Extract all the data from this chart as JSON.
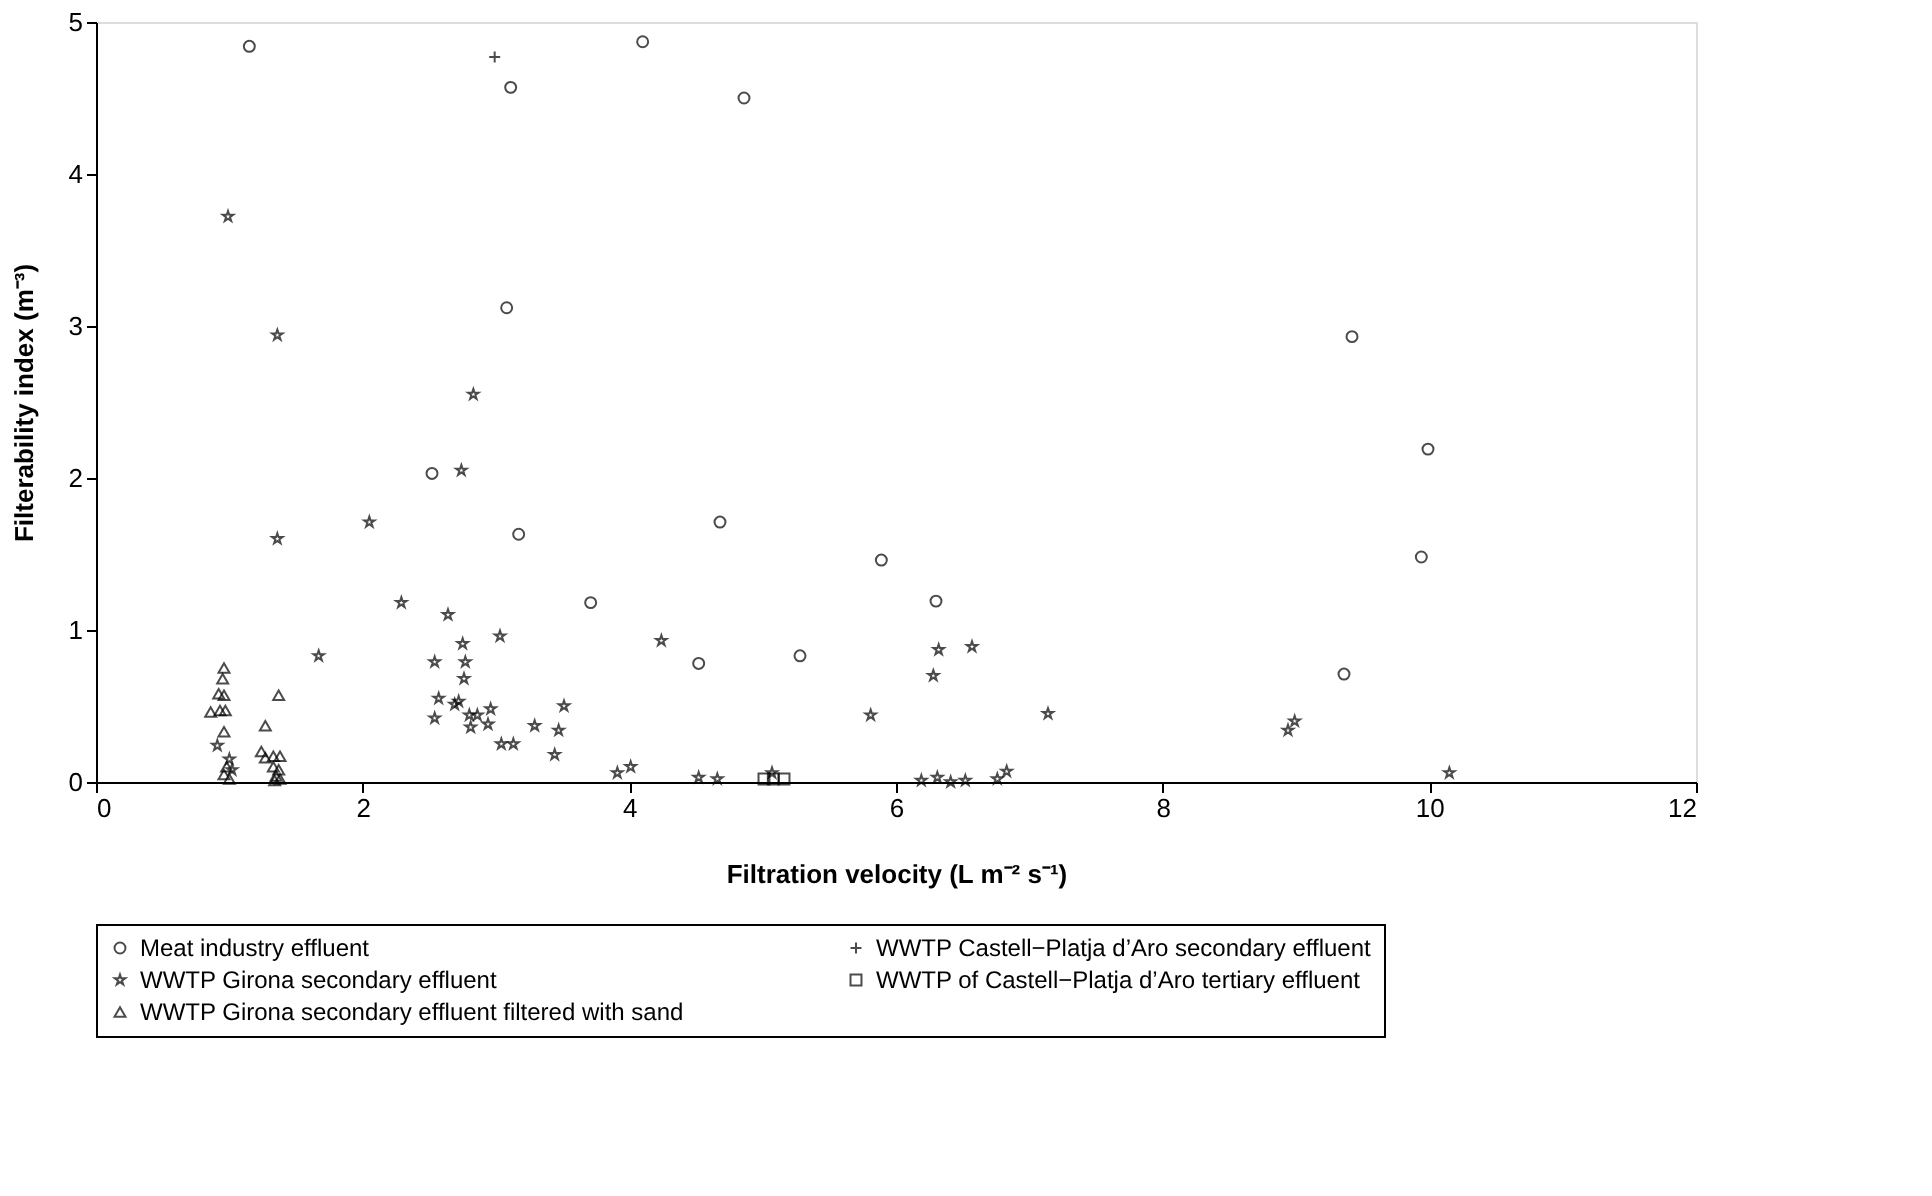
{
  "chart_data": {
    "type": "scatter",
    "xlabel": "Filtration velocity (L m⁻² s⁻¹)",
    "ylabel": "Filterability index (m⁻³)",
    "xlim": [
      0,
      12
    ],
    "ylim": [
      0,
      5
    ],
    "xticks": [
      0,
      2,
      4,
      6,
      8,
      10,
      12
    ],
    "yticks": [
      0,
      1,
      2,
      3,
      4,
      5
    ],
    "grid": false,
    "legend": "bottom",
    "series": [
      {
        "name": "Meat industry effluent",
        "color": "#000000",
        "marker": "circle",
        "x": [
          1.15,
          3.11,
          3.08,
          2.52,
          3.17,
          3.71,
          4.1,
          4.86,
          4.68,
          5.89,
          6.3,
          4.52,
          5.28,
          9.42,
          9.99,
          9.94,
          9.36
        ],
        "values": [
          4.84,
          4.57,
          3.12,
          2.03,
          1.63,
          1.18,
          4.87,
          4.5,
          1.71,
          1.46,
          1.19,
          0.78,
          0.83,
          2.93,
          2.19,
          1.48,
          0.71
        ]
      },
      {
        "name": "WWTP Castell−Platja d’Aro secondary effluent",
        "color": "#000000",
        "marker": "cross",
        "x": [
          2.99
        ],
        "values": [
          4.77
        ]
      },
      {
        "name": "WWTP Girona secondary effluent",
        "color": "#000000",
        "marker": "star",
        "x": [
          0.99,
          1.36,
          2.83,
          2.74,
          1.36,
          2.05,
          2.29,
          2.64,
          1.67,
          2.75,
          3.03,
          2.54,
          2.77,
          2.76,
          2.57,
          2.69,
          2.54,
          2.8,
          2.86,
          2.96,
          2.81,
          2.94,
          2.72,
          3.04,
          3.13,
          3.29,
          3.51,
          3.47,
          3.44,
          3.91,
          4.01,
          0.91,
          1.0,
          1.02,
          4.24,
          4.52,
          4.66,
          5.07,
          5.81,
          6.32,
          6.28,
          6.57,
          7.14,
          6.19,
          6.31,
          6.41,
          6.52,
          6.76,
          6.83,
          8.94,
          8.99,
          10.15
        ],
        "values": [
          3.72,
          2.94,
          2.55,
          2.05,
          1.6,
          1.71,
          1.18,
          1.1,
          0.83,
          0.91,
          0.96,
          0.79,
          0.79,
          0.68,
          0.55,
          0.51,
          0.42,
          0.44,
          0.44,
          0.48,
          0.36,
          0.38,
          0.53,
          0.25,
          0.25,
          0.37,
          0.5,
          0.34,
          0.18,
          0.06,
          0.1,
          0.24,
          0.15,
          0.08,
          0.93,
          0.03,
          0.02,
          0.06,
          0.44,
          0.87,
          0.7,
          0.89,
          0.45,
          0.01,
          0.03,
          0.0,
          0.01,
          0.02,
          0.07,
          0.34,
          0.4,
          0.06
        ]
      },
      {
        "name": "WWTP of Castell−Platja d’Aro tertiary effluent",
        "color": "#000000",
        "marker": "square",
        "x": [
          5.01,
          5.08,
          5.16
        ],
        "values": [
          0.02,
          0.02,
          0.02
        ]
      },
      {
        "name": "WWTP Girona secondary effluent filtered with sand",
        "color": "#000000",
        "marker": "triangle",
        "x": [
          0.96,
          0.95,
          0.92,
          0.96,
          0.86,
          0.93,
          0.97,
          0.96,
          1.37,
          1.27,
          1.24,
          1.27,
          1.33,
          1.38,
          1.33,
          1.37,
          1.35,
          1.38,
          1.34,
          0.98,
          0.96,
          1.0
        ],
        "values": [
          0.75,
          0.68,
          0.58,
          0.57,
          0.46,
          0.47,
          0.47,
          0.33,
          0.57,
          0.37,
          0.2,
          0.16,
          0.17,
          0.17,
          0.1,
          0.08,
          0.04,
          0.02,
          0.01,
          0.1,
          0.05,
          0.02
        ]
      }
    ]
  }
}
